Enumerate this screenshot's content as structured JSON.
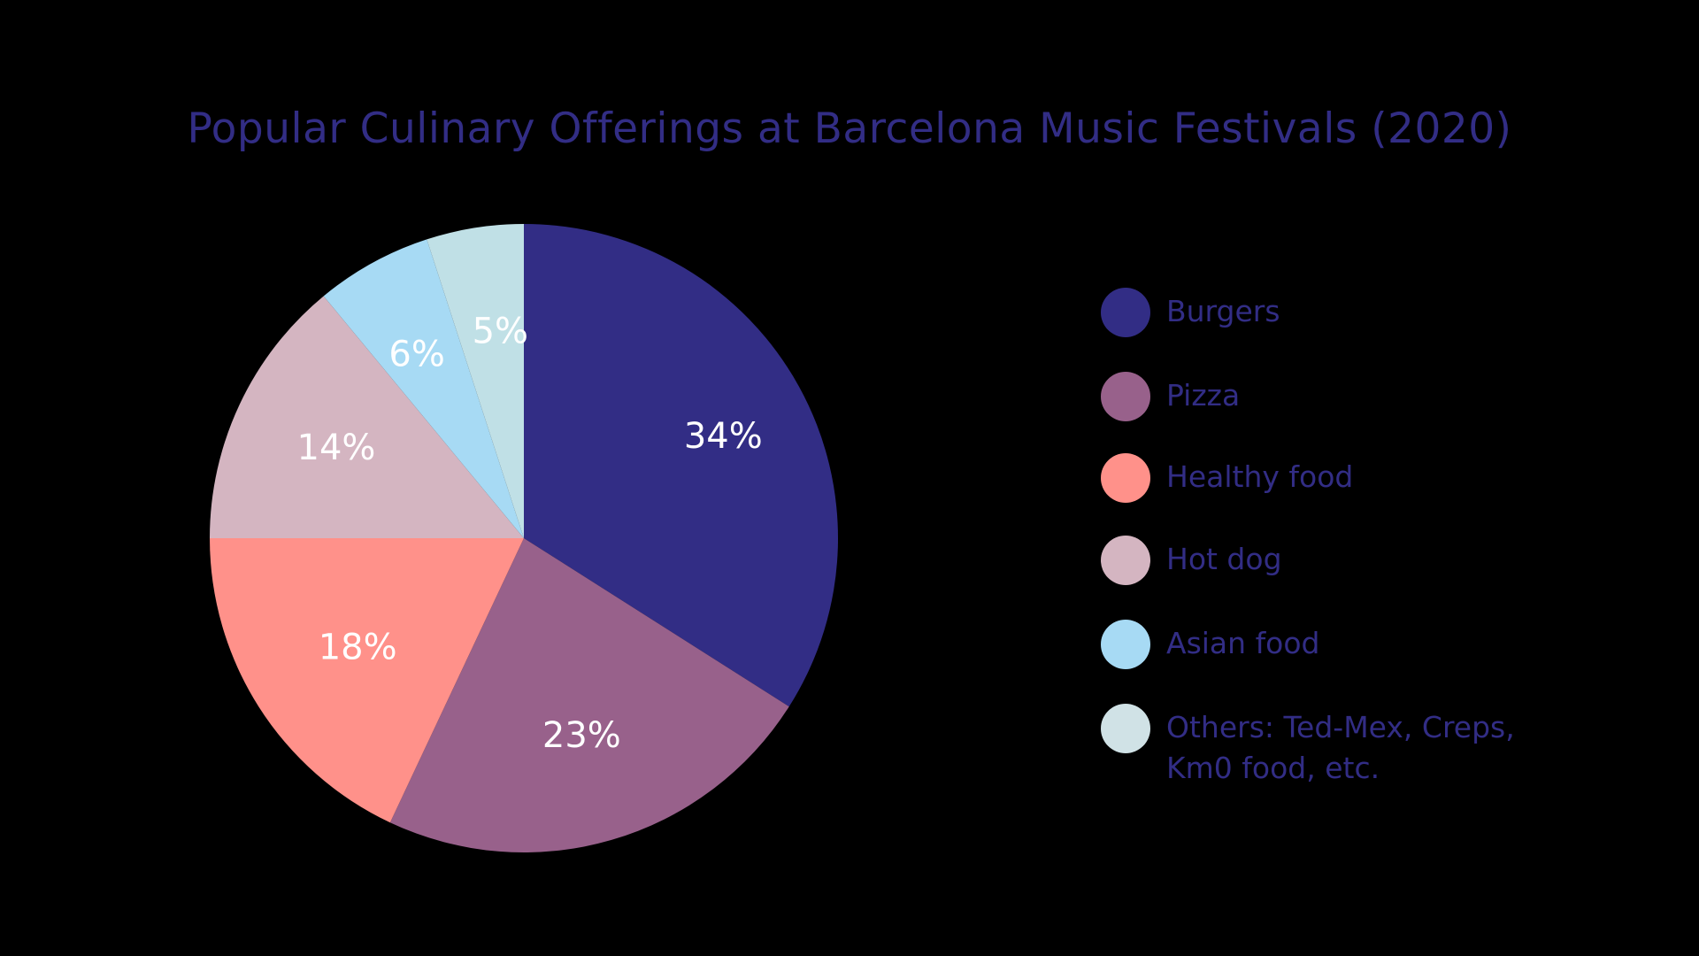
{
  "chart_data": {
    "type": "pie",
    "title": "Popular Culinary Offerings at Barcelona Music Festivals (2020)",
    "categories": [
      "Burgers",
      "Pizza",
      "Healthy food",
      "Hot dog",
      "Asian food",
      "Others: Ted-Mex, Creps, Km0 food, etc."
    ],
    "values": [
      34,
      23,
      18,
      14,
      6,
      5
    ],
    "data_labels": [
      "34%",
      "23%",
      "18%",
      "14%",
      "6%",
      "5%"
    ],
    "colors": [
      "#322d85",
      "#98618b",
      "#ff918a",
      "#d4b5c1",
      "#a7daf4",
      "#c0e0e6"
    ],
    "legend_colors": [
      "#322d85",
      "#98618b",
      "#ff918a",
      "#d4b5c1",
      "#a7daf4",
      "#d0e2e6"
    ],
    "legend_position": "right",
    "start_angle_deg": 0,
    "direction": "clockwise"
  },
  "theme": {
    "background": "#000000",
    "text_color": "#322d85",
    "label_color": "#ffffff"
  }
}
